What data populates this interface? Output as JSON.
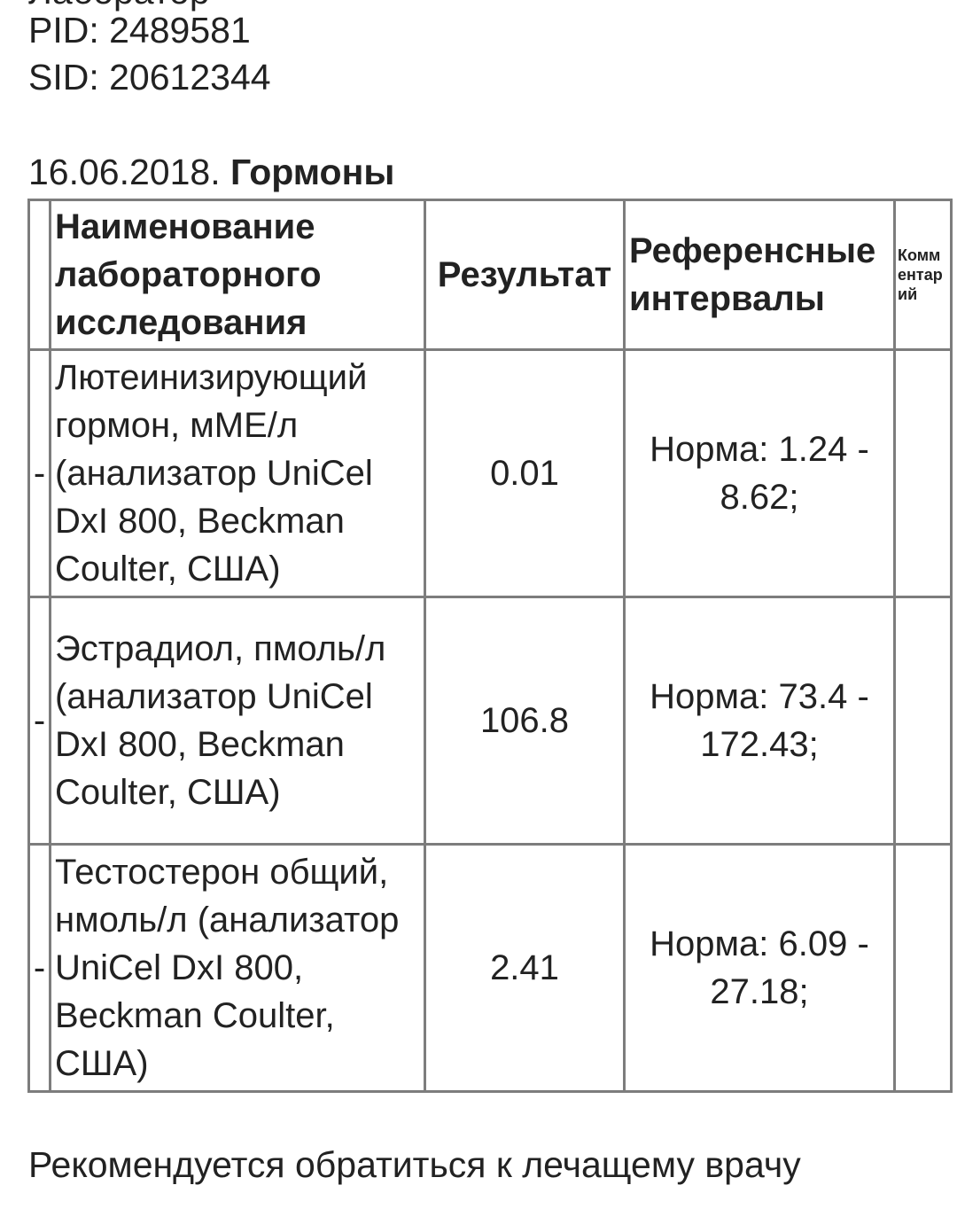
{
  "header": {
    "top_cut": "Лаборатор",
    "pid": "PID: 2489581",
    "sid": "SID: 20612344"
  },
  "section": {
    "date": "16.06.2018.",
    "title": "Гормоны"
  },
  "table": {
    "columns": [
      "",
      "Наименование лабораторного исследования",
      "Результат",
      "Референсные интервалы",
      "Комментарий"
    ],
    "rows": [
      {
        "marker": "-",
        "name": "Лютеинизирующий гормон, мМЕ/л (анализатор UniCel DxI 800, Beckman Coulter, США)",
        "result": "0.01",
        "reference": "Норма:   1.24 - 8.62;"
      },
      {
        "marker": "-",
        "name": "Эстрадиол, пмоль/л (анализатор UniCel DxI 800, Beckman Coulter, США)",
        "result": "106.8",
        "reference": "Норма:   73.4 - 172.43;"
      },
      {
        "marker": "-",
        "name": "Тестостерон общий, нмоль/л (анализатор UniCel DxI 800, Beckman Coulter, США)",
        "result": "2.41",
        "reference": "Норма:   6.09 - 27.18;"
      }
    ]
  },
  "recommendation": "Рекомендуется обратиться к лечащему врачу"
}
